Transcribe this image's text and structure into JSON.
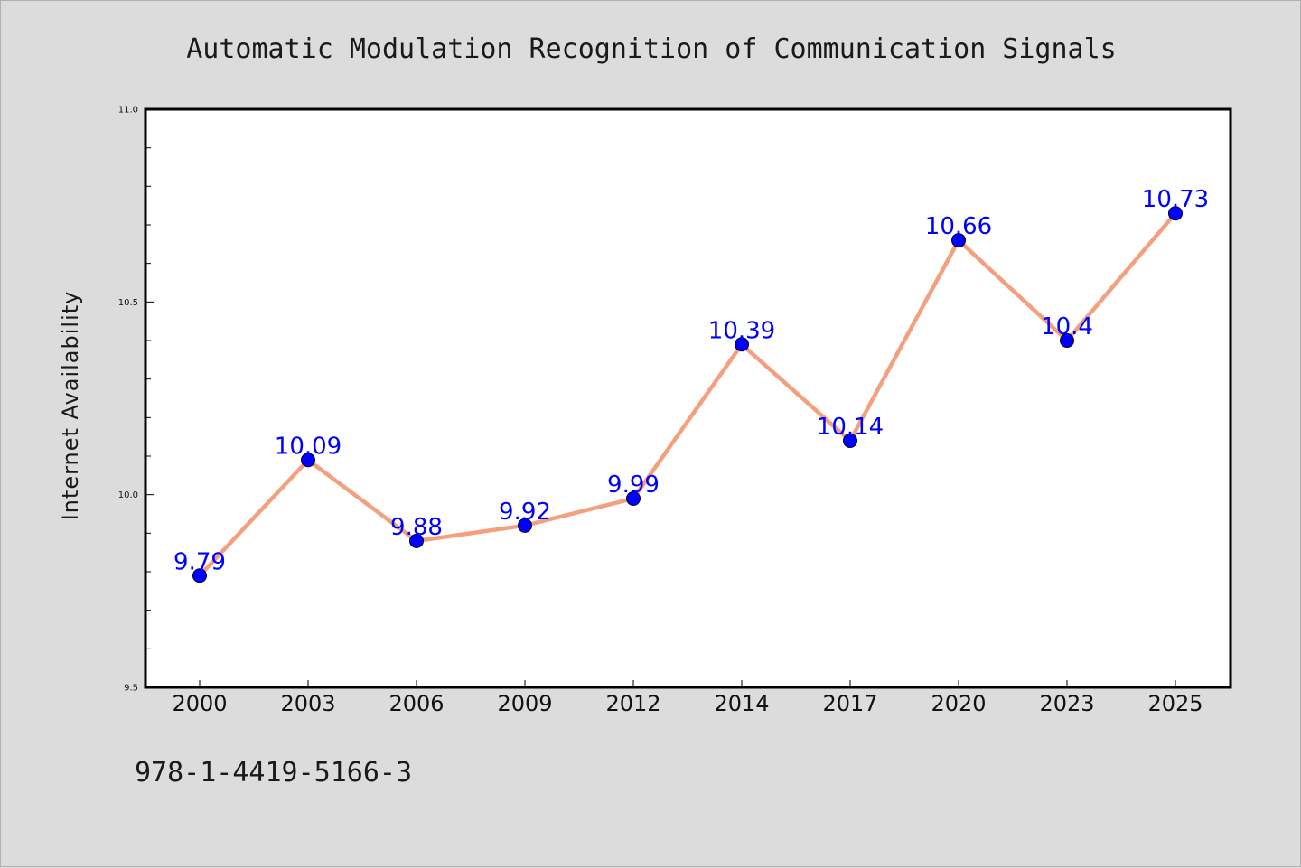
{
  "chart_data": {
    "type": "line",
    "title": "Automatic Modulation Recognition of Communication Signals",
    "xlabel": "",
    "ylabel": "Internet Availability",
    "categories": [
      "2000",
      "2003",
      "2006",
      "2009",
      "2012",
      "2014",
      "2017",
      "2020",
      "2023",
      "2025"
    ],
    "series": [
      {
        "values": [
          9.79,
          10.09,
          9.88,
          9.92,
          9.99,
          10.39,
          10.14,
          10.66,
          10.4,
          10.73
        ],
        "data_labels": [
          "9.79",
          "10.09",
          "9.88",
          "9.92",
          "9.99",
          "10.39",
          "10.14",
          "10.66",
          "10.4",
          "10.73"
        ],
        "line_color": "#f4a07f",
        "marker_color": "#0000ff"
      }
    ],
    "ylim": [
      9.5,
      11.0
    ],
    "yticks": [
      "9.5",
      "10.0",
      "10.5",
      "11.0"
    ],
    "grid": false,
    "label_color": "#0000ff"
  },
  "footer_text": "978-1-4419-5166-3"
}
